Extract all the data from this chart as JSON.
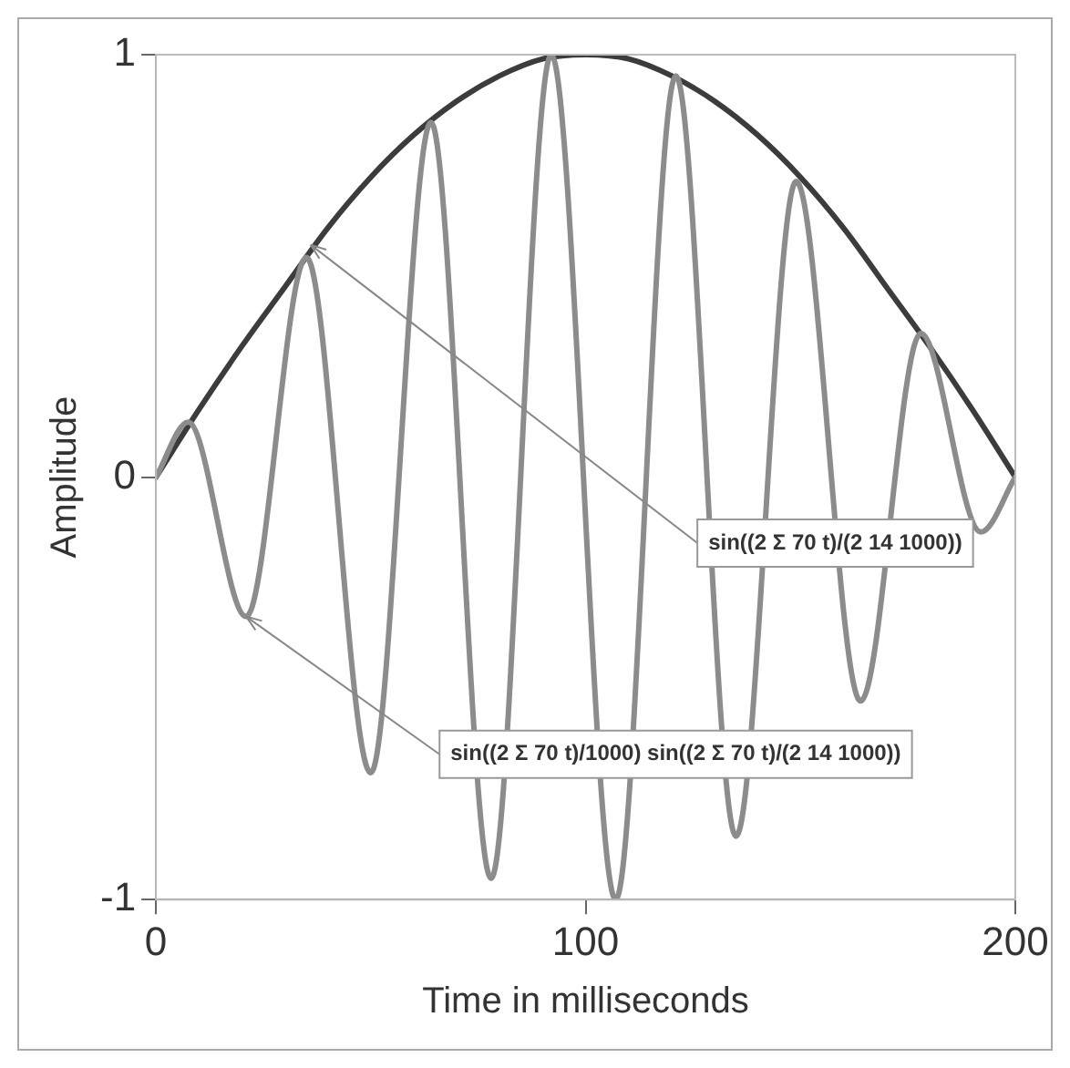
{
  "chart_data": {
    "type": "line",
    "xlabel": "Time in milliseconds",
    "ylabel": "Amplitude",
    "xlim": [
      0,
      200
    ],
    "xticks": [
      0,
      100,
      200
    ],
    "ylim": [
      -1,
      1
    ],
    "yticks": [
      -1,
      0,
      1
    ],
    "grid": false,
    "legend": false,
    "marker": "none",
    "line_style": "solid",
    "series": [
      {
        "color": "#8c8c8c",
        "x": [
          0,
          7.5,
          21,
          35,
          50,
          64,
          78,
          92,
          107,
          121,
          135,
          149,
          164,
          178,
          192,
          200
        ],
        "values": [
          0,
          0.13,
          -0.33,
          0.52,
          -0.7,
          0.84,
          -0.95,
          1,
          -1,
          0.95,
          -0.85,
          0.7,
          -0.53,
          0.34,
          -0.13,
          0
        ]
      },
      {
        "color": "#3c3c3c",
        "x": [
          0,
          10,
          20,
          30,
          40,
          50,
          60,
          70,
          80,
          90,
          100,
          110,
          120,
          130,
          140,
          150,
          160,
          170,
          180,
          190,
          200
        ],
        "values": [
          0,
          0.16,
          0.31,
          0.45,
          0.59,
          0.71,
          0.81,
          0.89,
          0.95,
          0.99,
          1,
          0.99,
          0.95,
          0.89,
          0.81,
          0.71,
          0.59,
          0.45,
          0.31,
          0.16,
          0
        ]
      }
    ],
    "annotations": [
      {
        "text": "sin((2 Σ 70 t)/(2 14 1000))",
        "x": 36,
        "y": 0.55
      },
      {
        "text": "sin((2 Σ 70 t)/1000) sin((2 Σ 70 t)/(2 14 1000))",
        "x": 21,
        "y": -0.33
      }
    ]
  }
}
